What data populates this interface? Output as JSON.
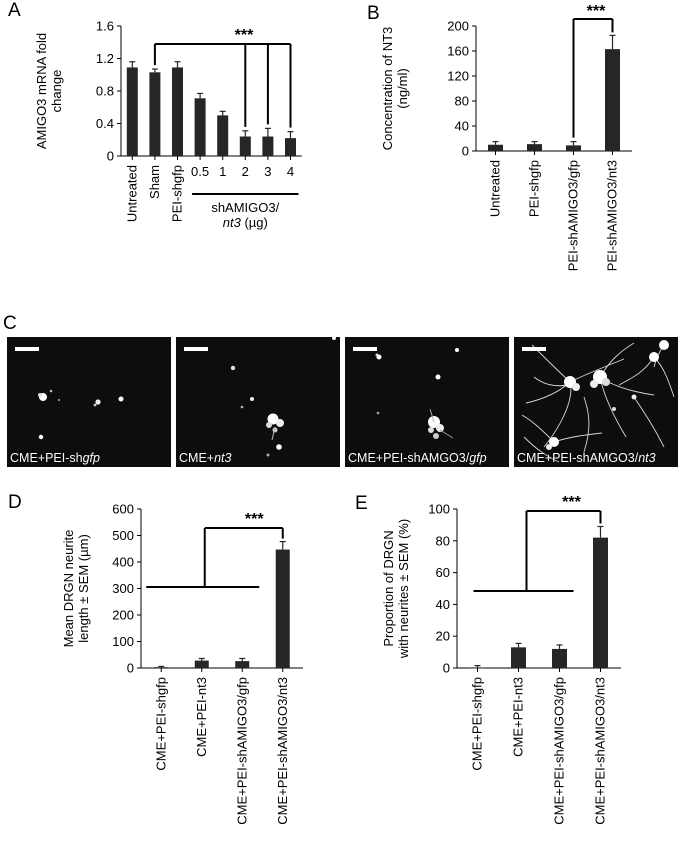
{
  "colors": {
    "bar": "#262626",
    "axis": "#000000",
    "image_bg": "#0d0d0d"
  },
  "panel_letters": {
    "a": "A",
    "b": "B",
    "c": "C",
    "d": "D",
    "e": "E"
  },
  "chart_data": [
    {
      "panel": "A",
      "type": "bar",
      "ylabel_lines": [
        "AMIGO3 mRNA fold",
        "change"
      ],
      "ylim": [
        0,
        1.6
      ],
      "yticks": [
        "0",
        "0.4",
        "0.8",
        "1.2",
        "1.6"
      ],
      "categories": [
        "Untreated",
        "Sham",
        "PEI-shgfp",
        "0.5",
        "1",
        "2",
        "3",
        "4"
      ],
      "values": [
        1.09,
        1.03,
        1.09,
        0.71,
        0.5,
        0.24,
        0.24,
        0.22
      ],
      "errors": [
        0.07,
        0.04,
        0.07,
        0.06,
        0.05,
        0.07,
        0.1,
        0.08
      ],
      "group_label_lines": [
        "shAMIGO3/",
        "nt3 (µg)"
      ],
      "significance": "***"
    },
    {
      "panel": "B",
      "type": "bar",
      "ylabel_lines": [
        "Concentration of NT3",
        "(ng/ml)"
      ],
      "ylim": [
        0,
        200
      ],
      "yticks": [
        "0",
        "40",
        "80",
        "120",
        "160",
        "200"
      ],
      "categories": [
        "Untreated",
        "PEI-shgfp",
        "PEI-shAMIGO3/gfp",
        "PEI-shAMIGO3/nt3"
      ],
      "values": [
        10,
        11,
        9,
        163
      ],
      "errors": [
        5,
        4,
        6,
        22
      ],
      "significance": "***"
    },
    {
      "panel": "D",
      "type": "bar",
      "ylabel_lines": [
        "Mean DRGN neurite",
        "length ± SEM (µm)"
      ],
      "ylim": [
        0,
        600
      ],
      "yticks": [
        "0",
        "100",
        "200",
        "300",
        "400",
        "500",
        "600"
      ],
      "categories": [
        "CME+PEI-shgfp",
        "CME+PEI-nt3",
        "CME+PEI-shAMIGO3/gfp",
        "CME+PEI-shAMIGO3/nt3"
      ],
      "values": [
        3,
        28,
        26,
        447
      ],
      "errors": [
        3,
        8,
        10,
        30
      ],
      "significance": "***"
    },
    {
      "panel": "E",
      "type": "bar",
      "ylabel_lines": [
        "Proportion of DRGN",
        "with neurites ± SEM (%)"
      ],
      "ylim": [
        0,
        100
      ],
      "yticks": [
        "0",
        "20",
        "40",
        "60",
        "80",
        "100"
      ],
      "categories": [
        "CME+PEI-shgfp",
        "CME+PEI-nt3",
        "CME+PEI-shAMIGO3/gfp",
        "CME+PEI-shAMIGO3/nt3"
      ],
      "values": [
        0,
        13,
        12,
        82
      ],
      "errors": [
        1.5,
        2.5,
        2.5,
        7
      ],
      "significance": "***"
    }
  ],
  "micrographs": [
    {
      "caption": "CME+PEI-sh",
      "caption_italic": "gfp"
    },
    {
      "caption": "CME+",
      "caption_italic": "nt3"
    },
    {
      "caption": "CME+PEI-shAMGO3/",
      "caption_italic": "gfp"
    },
    {
      "caption": "CME+PEI-shAMGO3/",
      "caption_italic": "nt3"
    }
  ]
}
